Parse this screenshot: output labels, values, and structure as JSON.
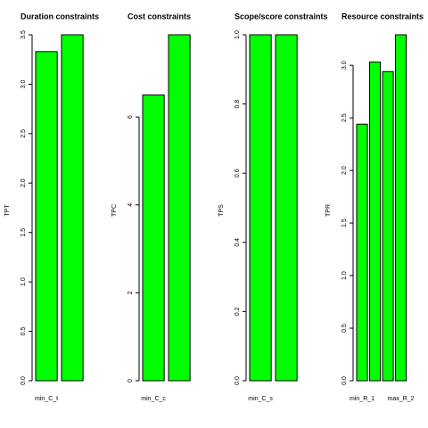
{
  "chart_data": [
    {
      "type": "bar",
      "title": "Duration constraints",
      "y_label": "TPT",
      "categories": [
        "min_C_t",
        null
      ],
      "values": [
        3.33,
        3.5
      ],
      "color": "#00ff00",
      "ylim": [
        0,
        3.5
      ],
      "yticks": [
        {
          "value": 0,
          "label": "0.0"
        },
        0.5,
        {
          "value": 1,
          "label": "1.0"
        },
        1.5,
        {
          "value": 2,
          "label": "2.0"
        },
        2.5,
        {
          "value": 3,
          "label": "3.0"
        },
        3.5
      ]
    },
    {
      "type": "bar",
      "title": "Cost constraints",
      "y_label": "TPC",
      "categories": [
        "min_C_c",
        null
      ],
      "values": [
        6.5,
        7.87
      ],
      "color": "#00ff00",
      "ylim": [
        0,
        7.87
      ],
      "yticks": [
        0,
        2,
        4,
        6
      ]
    },
    {
      "type": "bar",
      "title": "Scope/score constraints",
      "y_label": "TPS",
      "categories": [
        "min_C_s",
        null
      ],
      "values": [
        1,
        1
      ],
      "color": "#00ff00",
      "ylim": [
        0,
        1
      ],
      "yticks": [
        {
          "value": 0,
          "label": "0.0"
        },
        0.2,
        0.4,
        0.6,
        0.8,
        {
          "value": 1,
          "label": "1.0"
        }
      ]
    },
    {
      "type": "bar",
      "title": "Resource constraints",
      "y_label": "TPR",
      "categories": [
        "min_R_1",
        null,
        null,
        "max_R_2"
      ],
      "values": [
        2.44,
        3.03,
        2.94,
        3.29
      ],
      "color": "#00ff00",
      "ylim": [
        0,
        3.29
      ],
      "yticks": [
        {
          "value": 0,
          "label": "0.0"
        },
        0.5,
        {
          "value": 1,
          "label": "1.0"
        },
        1.5,
        {
          "value": 2,
          "label": "2.0"
        },
        2.5,
        {
          "value": 3,
          "label": "3.0"
        }
      ]
    }
  ]
}
